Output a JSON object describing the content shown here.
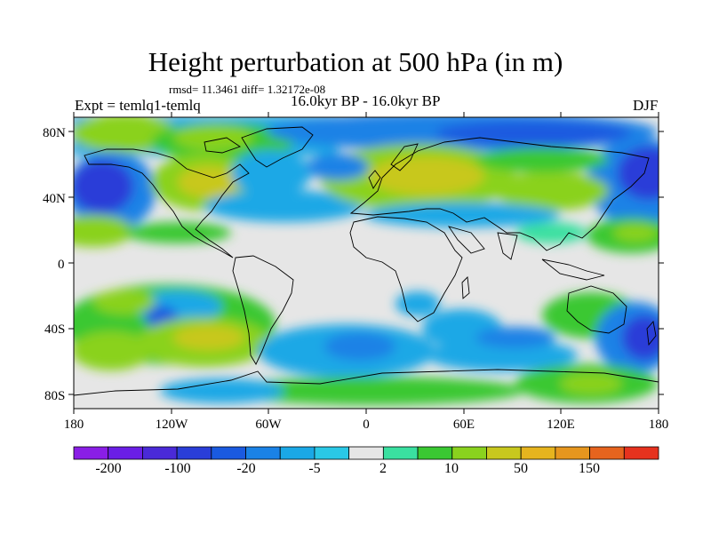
{
  "title": "Height perturbation at 500 hPa (in m)",
  "stats": "rmsd= 11.3461 diff= 1.32172e-08",
  "experiment": "Expt = temlq1-temlq",
  "period": "16.0kyr BP - 16.0kyr BP",
  "season": "DJF",
  "lat_labels": [
    "80N",
    "40N",
    "0",
    "40S",
    "80S"
  ],
  "lon_labels": [
    "180",
    "120W",
    "60W",
    "0",
    "60E",
    "120E",
    "180"
  ],
  "colorbar": {
    "labels": [
      "-200",
      "-100",
      "-20",
      "-5",
      "2",
      "10",
      "50",
      "150"
    ],
    "colors": [
      "#8a1ee6",
      "#6a1ee6",
      "#4a2ad8",
      "#2a3ed8",
      "#1a5ae0",
      "#1a82e6",
      "#1aa8e6",
      "#2ac8e6",
      "#e6e6e6",
      "#3ae0a0",
      "#3ac832",
      "#8ad21e",
      "#c8c81e",
      "#e6b41e",
      "#e6961e",
      "#e6641e",
      "#e6321e"
    ]
  }
}
